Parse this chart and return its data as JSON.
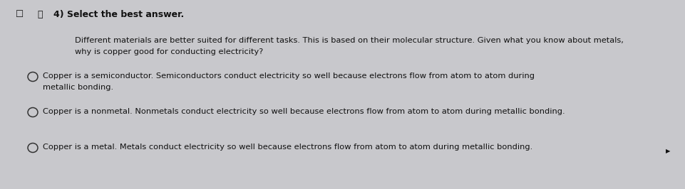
{
  "background_color": "#c8c8cc",
  "title_bold": "4) Select the best answer.",
  "question_line1": "Different materials are better suited for different tasks. This is based on their molecular structure. Given what you know about metals,",
  "question_line2": "why is copper good for conducting electricity?",
  "option1_line1": "Copper is a semiconductor. Semiconductors conduct electricity so well because electrons flow from atom to atom during",
  "option1_line2": "metallic bonding.",
  "option2": "Copper is a nonmetal. Nonmetals conduct electricity so well because electrons flow from atom to atom during metallic bonding.",
  "option3": "Copper is a metal. Metals conduct electricity so well because electrons flow from atom to atom during metallic bonding.",
  "text_color": "#111111",
  "circle_color": "#333333",
  "icon1": "☐",
  "icon2": "⎓",
  "figsize": [
    9.62,
    2.66
  ],
  "dpi": 100,
  "font_size_title": 9.0,
  "font_size_body": 8.2
}
